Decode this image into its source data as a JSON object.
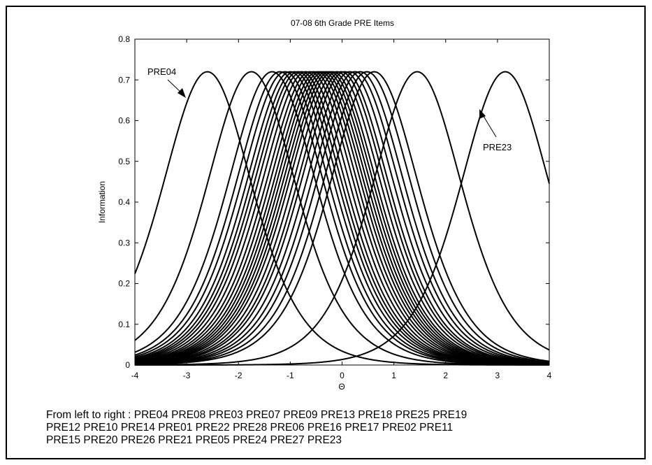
{
  "chart_data": {
    "type": "line",
    "title": "07-08 6th Grade PRE Items",
    "xlabel": "Θ",
    "ylabel": "Information",
    "xlim": [
      -4,
      4
    ],
    "ylim": [
      0,
      0.8
    ],
    "x_ticks": [
      -4,
      -3,
      -2,
      -1,
      0,
      1,
      2,
      3,
      4
    ],
    "y_ticks": [
      0,
      0.1,
      0.2,
      0.3,
      0.4,
      0.5,
      0.6,
      0.7,
      0.8
    ],
    "grid": false,
    "legend": "none",
    "line_color": "#000000",
    "curve_peak_information": 0.72,
    "series": [
      {
        "name": "PRE04",
        "location": -2.6
      },
      {
        "name": "PRE08",
        "location": -1.75
      },
      {
        "name": "PRE03",
        "location": -1.35
      },
      {
        "name": "PRE07",
        "location": -1.2
      },
      {
        "name": "PRE09",
        "location": -1.1
      },
      {
        "name": "PRE13",
        "location": -1.0
      },
      {
        "name": "PRE18",
        "location": -0.92
      },
      {
        "name": "PRE25",
        "location": -0.85
      },
      {
        "name": "PRE19",
        "location": -0.78
      },
      {
        "name": "PRE12",
        "location": -0.7
      },
      {
        "name": "PRE10",
        "location": -0.62
      },
      {
        "name": "PRE14",
        "location": -0.55
      },
      {
        "name": "PRE01",
        "location": -0.48
      },
      {
        "name": "PRE22",
        "location": -0.42
      },
      {
        "name": "PRE28",
        "location": -0.36
      },
      {
        "name": "PRE06",
        "location": -0.3
      },
      {
        "name": "PRE16",
        "location": -0.24
      },
      {
        "name": "PRE17",
        "location": -0.18
      },
      {
        "name": "PRE02",
        "location": -0.1
      },
      {
        "name": "PRE11",
        "location": -0.02
      },
      {
        "name": "PRE15",
        "location": 0.05
      },
      {
        "name": "PRE20",
        "location": 0.15
      },
      {
        "name": "PRE26",
        "location": 0.25
      },
      {
        "name": "PRE21",
        "location": 0.35
      },
      {
        "name": "PRE05",
        "location": 0.48
      },
      {
        "name": "PRE24",
        "location": 0.62
      },
      {
        "name": "PRE27",
        "location": 1.45
      },
      {
        "name": "PRE23",
        "location": 3.15
      }
    ],
    "annotations": [
      {
        "text": "PRE04",
        "points_to": "PRE04"
      },
      {
        "text": "PRE23",
        "points_to": "PRE23"
      }
    ]
  },
  "caption": {
    "lines": [
      "From left to right : PRE04 PRE08 PRE03 PRE07 PRE09 PRE13 PRE18 PRE25 PRE19",
      "PRE12 PRE10 PRE14 PRE01 PRE22 PRE28 PRE06 PRE16 PRE17 PRE02 PRE11",
      "PRE15 PRE20 PRE26 PRE21 PRE05 PRE24 PRE27 PRE23"
    ]
  }
}
